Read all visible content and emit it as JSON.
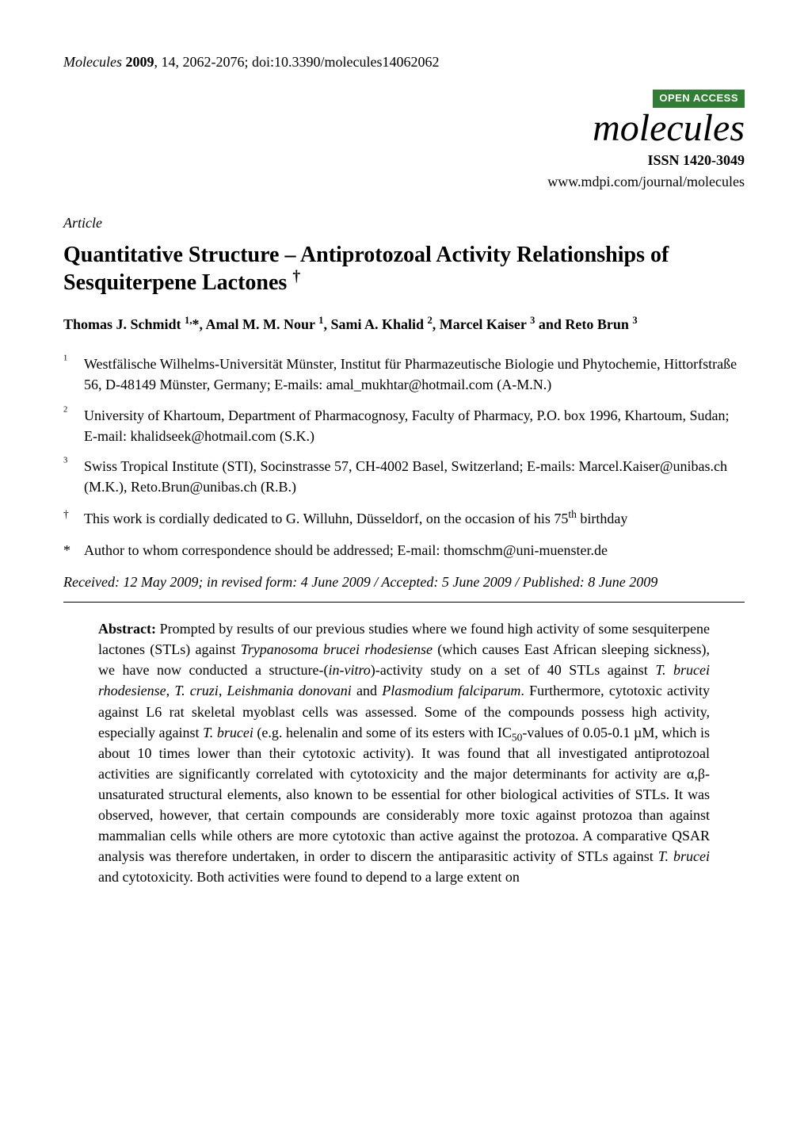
{
  "header": {
    "journal": "Molecules",
    "year": "2009",
    "volume_issue": "14",
    "pages": "2062-2076",
    "doi": "doi:10.3390/molecules14062062"
  },
  "branding": {
    "badge": "OPEN ACCESS",
    "journal_name": "molecules",
    "issn": "ISSN 1420-3049",
    "url": "www.mdpi.com/journal/molecules",
    "badge_bg": "#2f7e33",
    "badge_fg": "#ffffff"
  },
  "article_type": "Article",
  "title": {
    "main": "Quantitative Structure – Antiprotozoal Activity Relationships of Sesquiterpene Lactones",
    "dagger": "†"
  },
  "authors": {
    "a1_name": "Thomas J. Schmidt ",
    "a1_sup": "1,",
    "a1_mark": "*",
    "sep1": ", ",
    "a2_name": "Amal M. M. Nour ",
    "a2_sup": "1",
    "sep2": ", ",
    "a3_name": "Sami A. Khalid ",
    "a3_sup": "2",
    "sep3": ", ",
    "a4_name": "Marcel Kaiser ",
    "a4_sup": "3",
    "sep4": " and ",
    "a5_name": "Reto Brun ",
    "a5_sup": "3"
  },
  "affiliations": {
    "a1": {
      "num": "1",
      "text": "Westfälische Wilhelms-Universität Münster, Institut für Pharmazeutische Biologie und Phytochemie, Hittorfstraße 56, D-48149 Münster, Germany; E-mails: amal_mukhtar@hotmail.com (A-M.N.)"
    },
    "a2": {
      "num": "2",
      "text": "University of Khartoum, Department of Pharmacognosy, Faculty of Pharmacy, P.O. box 1996, Khartoum, Sudan; E-mail: khalidseek@hotmail.com (S.K.)"
    },
    "a3": {
      "num": "3",
      "text": "Swiss Tropical Institute (STI), Socinstrasse 57, CH-4002 Basel, Switzerland; E-mails: Marcel.Kaiser@unibas.ch (M.K.), Reto.Brun@unibas.ch (R.B.)"
    }
  },
  "dedication": {
    "marker": "†",
    "text_before": "This work is cordially dedicated to G. Willuhn, Düsseldorf, on the occasion of his 75",
    "sup": "th",
    "text_after": " birthday"
  },
  "correspondence": {
    "marker": "*",
    "text": "Author to whom correspondence should be addressed; E-mail: thomschm@uni-muenster.de"
  },
  "dates": "Received: 12 May 2009; in revised form: 4 June 2009 / Accepted: 5 June 2009 / Published: 8 June 2009",
  "abstract": {
    "label": "Abstract:",
    "p1a": " Prompted by results of our previous studies where we found high activity of some sesquiterpene lactones (STLs) against ",
    "it1": "Trypanosoma brucei rhodesiense",
    "p1b": " (which causes East African sleeping sickness), we have now conducted a structure-(",
    "it2": "in-vitro",
    "p1c": ")-activity study on a set of 40 STLs against ",
    "it3": "T. brucei rhodesiense",
    "p1d": ", ",
    "it4": "T. cruzi",
    "p1e": ", ",
    "it5": "Leishmania donovani",
    "p1f": " and ",
    "it6": "Plasmodium falciparum",
    "p1g": ". Furthermore, cytotoxic activity against L6 rat skeletal myoblast cells was assessed. Some of the compounds possess high activity, especially against ",
    "it7": "T. brucei",
    "p1h": " (e.g. helenalin and some of its esters with IC",
    "sub1": "50",
    "p1i": "-values of 0.05-0.1 µM, which is about 10 times lower than their cytotoxic activity). It was found that all investigated antiprotozoal activities are significantly correlated with cytotoxicity and the major determinants for activity are α,β-unsaturated structural elements, also known to be essential for other biological activities of STLs. It was observed, however, that certain compounds are considerably more toxic against protozoa than against mammalian cells while others are more cytotoxic than active against the protozoa. A comparative QSAR analysis was therefore undertaken, in order to discern the antiparasitic activity of STLs against ",
    "it8": "T. brucei",
    "p1j": " and cytotoxicity. Both activities were found to depend to a large extent on"
  }
}
